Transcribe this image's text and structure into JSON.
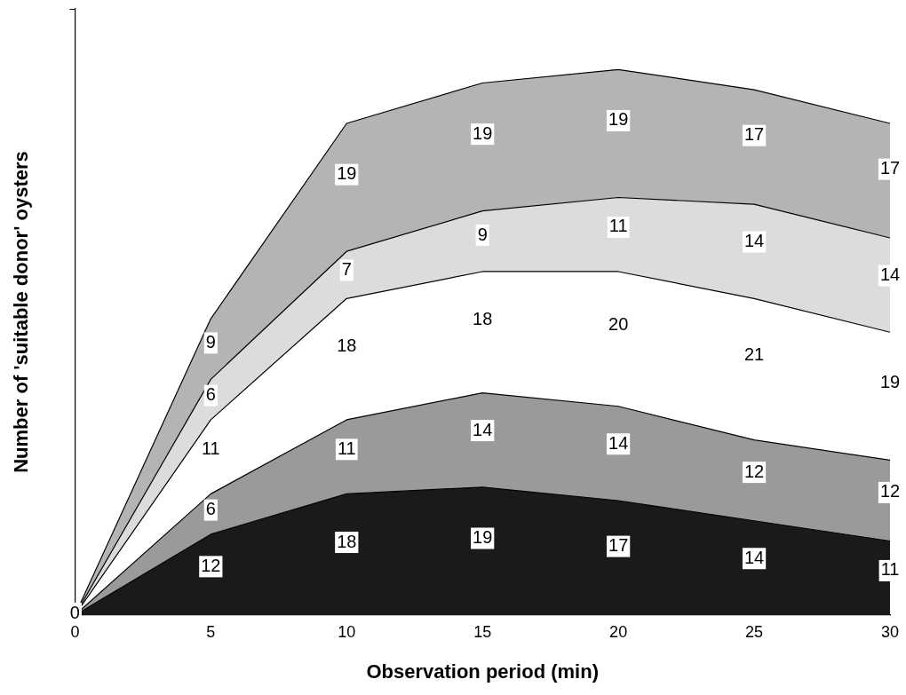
{
  "chart_data": {
    "type": "area",
    "stacked": true,
    "xlabel": "Observation period (min)",
    "ylabel": "Number of 'suitable donor' oysters",
    "x": [
      0,
      5,
      10,
      15,
      20,
      25,
      30
    ],
    "xlim": [
      0,
      30
    ],
    "xticks": [
      0,
      5,
      10,
      15,
      20,
      25,
      30
    ],
    "ylim": [
      0,
      90
    ],
    "tick_labels": "x",
    "grid": false,
    "legend": false,
    "data_labels": true,
    "series": [
      {
        "color": "#1a1a1a",
        "values": [
          0,
          12,
          18,
          19,
          17,
          14,
          11
        ],
        "value_labels": [
          "0",
          "12",
          "18",
          "19",
          "17",
          "14",
          "11"
        ]
      },
      {
        "color": "#9a9a9a",
        "values": [
          0,
          6,
          11,
          14,
          14,
          12,
          12
        ],
        "value_labels": [
          null,
          "6",
          "11",
          "14",
          "14",
          "12",
          "12"
        ]
      },
      {
        "color": "#ffffff",
        "values": [
          0,
          11,
          18,
          18,
          20,
          21,
          19
        ],
        "value_labels": [
          null,
          "11",
          "18",
          "18",
          "20",
          "21",
          "19"
        ]
      },
      {
        "color": "#dcdcdc",
        "values": [
          0,
          6,
          7,
          9,
          11,
          14,
          14
        ],
        "value_labels": [
          null,
          "6",
          "7",
          "9",
          "11",
          "14",
          "14"
        ]
      },
      {
        "color": "#b4b4b4",
        "values": [
          0,
          9,
          19,
          19,
          19,
          17,
          17
        ],
        "value_labels": [
          null,
          "9",
          "19",
          "19",
          "19",
          "17",
          "17"
        ]
      }
    ]
  }
}
